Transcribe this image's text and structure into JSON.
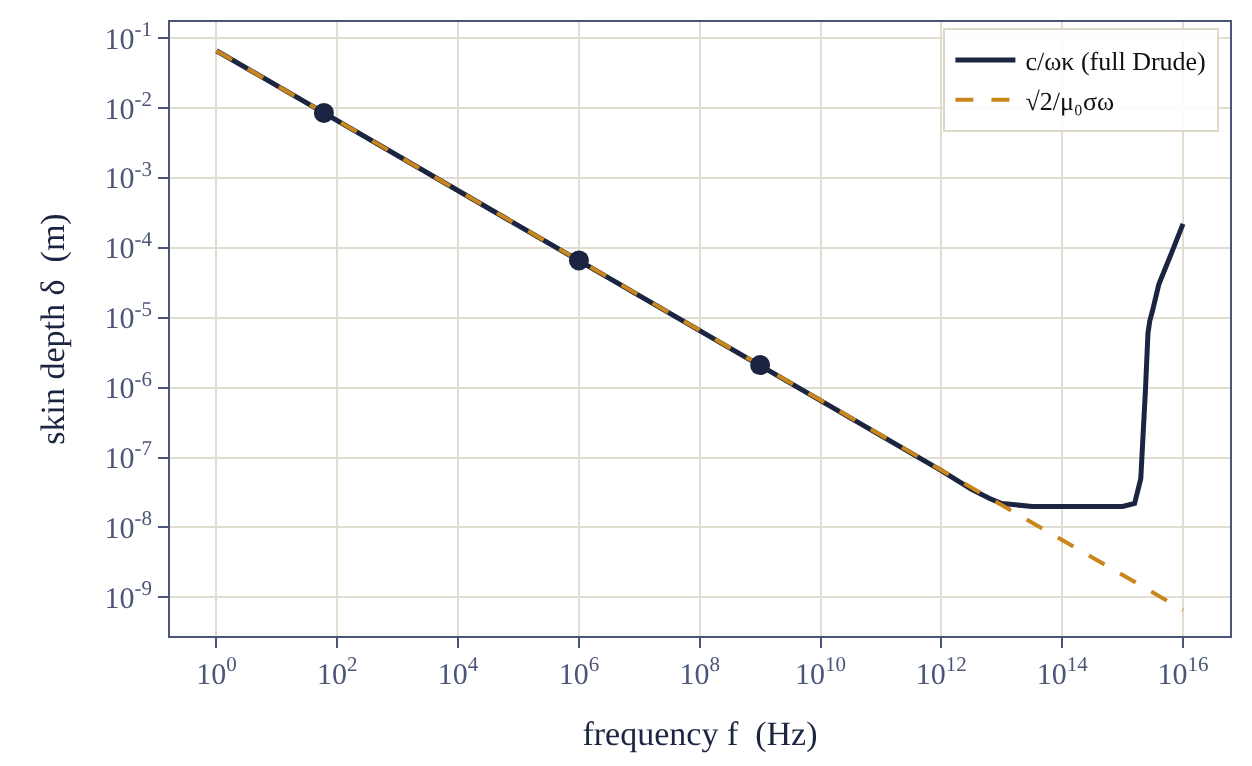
{
  "chart_data": {
    "type": "line",
    "xlabel": "frequency f  (Hz)",
    "ylabel": "skin depth δ  (m)",
    "log": "xy",
    "grid": true,
    "legend": "top right",
    "xlim": [
      0.17,
      6e+16
    ],
    "ylim": [
      2.8e-10,
      0.17
    ],
    "xticks": [
      {
        "value": 1,
        "label": "10$^{0}$"
      },
      {
        "value": 100.0,
        "label": "10$^{2}$"
      },
      {
        "value": 10000.0,
        "label": "10$^{4}$"
      },
      {
        "value": 1000000.0,
        "label": "10$^{6}$"
      },
      {
        "value": 100000000.0,
        "label": "10$^{8}$"
      },
      {
        "value": 10000000000.0,
        "label": "10$^{10}$"
      },
      {
        "value": 1000000000000.0,
        "label": "10$^{12}$"
      },
      {
        "value": 100000000000000.0,
        "label": "10$^{14}$"
      },
      {
        "value": 1e+16,
        "label": "10$^{16}$"
      }
    ],
    "yticks": [
      {
        "value": 0.1,
        "label": "10$^{-1}$"
      },
      {
        "value": 0.01,
        "label": "10$^{-2}$"
      },
      {
        "value": 0.001,
        "label": "10$^{-3}$"
      },
      {
        "value": 0.0001,
        "label": "10$^{-4}$"
      },
      {
        "value": 1e-05,
        "label": "10$^{-5}$"
      },
      {
        "value": 1e-06,
        "label": "10$^{-6}$"
      },
      {
        "value": 1e-07,
        "label": "10$^{-7}$"
      },
      {
        "value": 1e-08,
        "label": "10$^{-8}$"
      },
      {
        "value": 1e-09,
        "label": "10$^{-9}$"
      }
    ],
    "series": [
      {
        "name": "c/ωκ (full Drude)",
        "color": "#1b2440",
        "marker": "none",
        "line_style": "solid",
        "x": [
          1,
          1000000000000.0,
          3160000000000.0,
          6300000000000.0,
          10000000000000.0,
          31600000000000.0,
          100000000000000.0,
          1000000000000000.0,
          1580000000000000.0,
          2000000000000000.0,
          2400000000000000.0,
          2630000000000000.0,
          2820000000000000.0,
          3160000000000000.0,
          3980000000000000.0,
          6300000000000000.0,
          1e+16
        ],
        "values": [
          0.066,
          6.5e-08,
          3.5e-08,
          2.6e-08,
          2.2e-08,
          2e-08,
          2e-08,
          2e-08,
          2.2e-08,
          5e-08,
          1e-06,
          6e-06,
          9e-06,
          1.3e-05,
          3e-05,
          8e-05,
          0.00022
        ]
      },
      {
        "name": "√2/μ₀σω",
        "color": "#c8861b",
        "marker": "none",
        "line_style": "dashed",
        "x": [
          1,
          1e+16
        ],
        "values": [
          0.066,
          6.6e-10
        ]
      },
      {
        "type": "scatter",
        "color": "#1b2440",
        "marker": "circle",
        "x": [
          60,
          1000000.0,
          1000000000.0
        ],
        "values": [
          0.0085,
          6.6e-05,
          2.1e-06
        ]
      }
    ]
  }
}
